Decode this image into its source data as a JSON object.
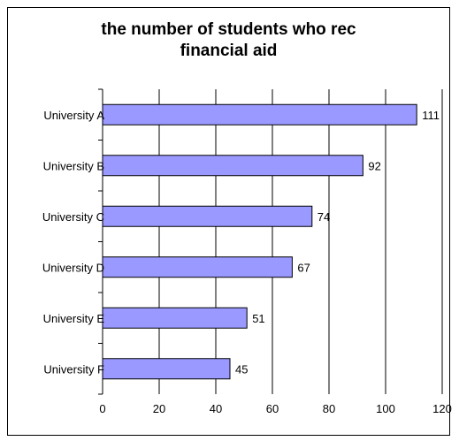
{
  "chart_data": {
    "type": "bar",
    "orientation": "horizontal",
    "title": "the number of students who rec\nfinancial aid",
    "categories": [
      "University A",
      "University B",
      "University C",
      "University D",
      "University E",
      "University F"
    ],
    "values": [
      111,
      92,
      74,
      67,
      51,
      45
    ],
    "xlim": [
      0,
      120
    ],
    "xticks": [
      "0",
      "20",
      "40",
      "60",
      "80",
      "100",
      "120"
    ],
    "grid": "vertical",
    "legend": "none",
    "colors": {
      "bar_fill": "#9999ff",
      "bar_stroke": "#000000",
      "grid": "#000000"
    }
  }
}
